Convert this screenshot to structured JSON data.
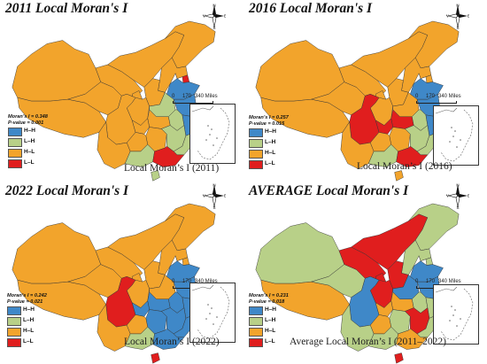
{
  "colors": {
    "hh": "#3f88c8",
    "lh": "#b8d088",
    "hl": "#f2a42c",
    "ll": "#e01e1e",
    "nodata": "#d8d8d8"
  },
  "legend_labels": {
    "hh": "H–H",
    "lh": "L–H",
    "hl": "H–L",
    "ll": "L–L"
  },
  "compass": {
    "n": "N",
    "s": "S",
    "e": "E",
    "w": "W"
  },
  "scale": {
    "zero": "0",
    "mid": "170",
    "end": "340 Miles"
  },
  "panels": [
    {
      "title": "2011 Local Moran's I",
      "caption": "Local Moran’s I (2011)",
      "moran": "Moran’s I = 0.348",
      "pvalue": "P-value = 0.001",
      "regions": {
        "northeast": "hl",
        "inner_mongolia": "hl",
        "beijing": "hl",
        "tianjin": "ll",
        "hebei": "hl",
        "shanxi": "hl",
        "shandong": "hh",
        "henan": "lh",
        "jiangsu": "hh",
        "anhui": "lh",
        "shanghai": "hh",
        "zhejiang": "hh",
        "fujian": "lh",
        "jiangxi": "lh",
        "hubei": "hl",
        "hunan": "hl",
        "guangdong": "ll",
        "guangxi": "lh",
        "hainan": "lh",
        "chongqing": "hl",
        "sichuan": "hl",
        "guizhou": "hl",
        "yunnan": "hl",
        "xizang": "hl",
        "qinghai": "hl",
        "gansu": "hl",
        "ningxia": "hl",
        "shaanxi": "hl",
        "xinjiang": "hl"
      }
    },
    {
      "title": "2016 Local Moran's I",
      "caption": "Local Moran’s I (2016)",
      "moran": "Moran’s I = 0.257",
      "pvalue": "P-value = 0.015",
      "regions": {
        "northeast": "hl",
        "inner_mongolia": "hl",
        "beijing": "hl",
        "tianjin": "hl",
        "hebei": "hl",
        "shanxi": "hl",
        "shandong": "hh",
        "henan": "hl",
        "jiangsu": "hh",
        "anhui": "lh",
        "shanghai": "hh",
        "zhejiang": "hh",
        "fujian": "lh",
        "jiangxi": "lh",
        "hubei": "ll",
        "hunan": "hl",
        "guangdong": "ll",
        "guangxi": "lh",
        "hainan": "hl",
        "chongqing": "ll",
        "sichuan": "ll",
        "guizhou": "hl",
        "yunnan": "hl",
        "xizang": "hl",
        "qinghai": "hl",
        "gansu": "hl",
        "ningxia": "hl",
        "shaanxi": "hl",
        "xinjiang": "hl"
      }
    },
    {
      "title": "2022 Local Moran's I",
      "caption": "Local Moran’s I (2022)",
      "moran": "Moran’s I = 0.242",
      "pvalue": "P-value = 0.021",
      "regions": {
        "northeast": "hl",
        "inner_mongolia": "hl",
        "beijing": "lh",
        "tianjin": "hl",
        "hebei": "hl",
        "shanxi": "hl",
        "shandong": "hh",
        "henan": "hl",
        "jiangsu": "hh",
        "anhui": "hh",
        "shanghai": "hh",
        "zhejiang": "hh",
        "fujian": "hh",
        "jiangxi": "hh",
        "hubei": "hh",
        "hunan": "hh",
        "guangdong": "hh",
        "guangxi": "lh",
        "hainan": "ll",
        "chongqing": "hh",
        "sichuan": "ll",
        "guizhou": "hl",
        "yunnan": "hl",
        "xizang": "hl",
        "qinghai": "hl",
        "gansu": "hl",
        "ningxia": "hl",
        "shaanxi": "hl",
        "xinjiang": "hl"
      }
    },
    {
      "title": "AVERAGE Local Moran's I",
      "caption": "Average Local Moran’s I (2011–2022)",
      "moran": "Moran’s I = 0.231",
      "pvalue": "P-value = 0.018",
      "regions": {
        "northeast": "lh",
        "inner_mongolia": "ll",
        "beijing": "hl",
        "tianjin": "lh",
        "hebei": "lh",
        "shanxi": "ll",
        "shandong": "hh",
        "henan": "hh",
        "jiangsu": "hh",
        "anhui": "lh",
        "shanghai": "hh",
        "zhejiang": "lh",
        "fujian": "lh",
        "jiangxi": "ll",
        "hubei": "hl",
        "hunan": "lh",
        "guangdong": "hl",
        "guangxi": "lh",
        "hainan": "ll",
        "chongqing": "hl",
        "sichuan": "hh",
        "guizhou": "hl",
        "yunnan": "lh",
        "xizang": "hl",
        "qinghai": "lh",
        "gansu": "ll",
        "ningxia": "ll",
        "shaanxi": "ll",
        "xinjiang": "lh"
      }
    }
  ]
}
